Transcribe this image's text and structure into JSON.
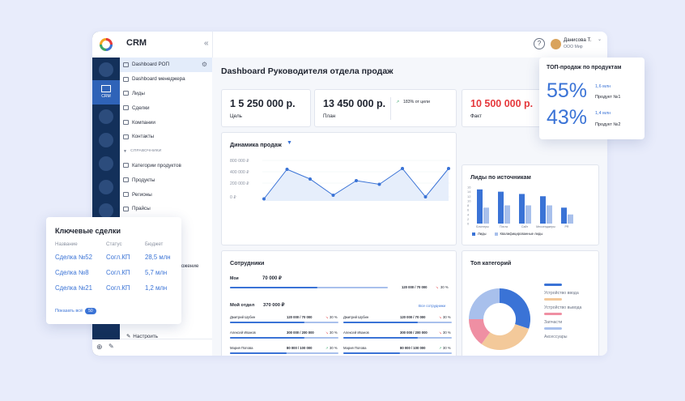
{
  "app": {
    "name": "CRM",
    "collapse_icon": "double-chevron-left-icon",
    "rail_selected_label": "CRM"
  },
  "sidebar": {
    "items": [
      {
        "label": "Dashboard РОП",
        "icon": "wifi-icon",
        "active": true
      },
      {
        "label": "Dashboard менеджера",
        "icon": "wifi-icon"
      },
      {
        "label": "Лиды",
        "icon": "funnel-icon"
      },
      {
        "label": "Сделки",
        "icon": "deals-icon"
      },
      {
        "label": "Компании",
        "icon": "building-icon"
      },
      {
        "label": "Контакты",
        "icon": "contacts-icon"
      }
    ],
    "section_label": "СПРАВОЧНИКИ",
    "ref_items": [
      {
        "label": "Категории продуктов",
        "icon": "grid-icon"
      },
      {
        "label": "Продукты",
        "icon": "grid-icon"
      },
      {
        "label": "Регионы",
        "icon": "document-icon"
      },
      {
        "label": "Прайсы",
        "icon": "document-icon"
      }
    ],
    "partial_item": "ложение",
    "settings_label": "Настроить"
  },
  "header": {
    "user_name": "Данисова Т.",
    "user_org": "ООО Мир"
  },
  "page": {
    "title": "Dashboard Руководителя отдела продаж"
  },
  "kpis": [
    {
      "value": "1 5 250 000 р.",
      "label": "Цель"
    },
    {
      "value": "13 450 000 р.",
      "label": "План",
      "delta": "183% от цели"
    },
    {
      "value": "10 500 000 р.",
      "label": "Факт"
    }
  ],
  "sales_dynamics": {
    "title": "Динамика продаж"
  },
  "leads_sources": {
    "title": "Лиды по источникам",
    "legend": [
      "Лиды",
      "Квалифицированные лиды"
    ]
  },
  "employees": {
    "title": "Сотрудники",
    "me": {
      "label": "Мои",
      "value": "70 000 ₽",
      "progress_text": "120 000 / 70 000",
      "pct": "30 %"
    },
    "dept": {
      "label": "Мой отдел",
      "value": "370 000 ₽",
      "link": "Все сотрудники"
    },
    "rows": [
      {
        "name": "Дмитрий Шубин",
        "value": "120 000 / 70 000",
        "pct": "30 %",
        "trend": "down"
      },
      {
        "name": "Дмитрий Шубин",
        "value": "120 000 / 70 000",
        "pct": "30 %",
        "trend": "down"
      },
      {
        "name": "Алексей Иванов",
        "value": "300 000 / 200 000",
        "pct": "30 %",
        "trend": "down"
      },
      {
        "name": "Алексей Иванов",
        "value": "300 000 / 200 000",
        "pct": "30 %",
        "trend": "down"
      },
      {
        "name": "Мария Попова",
        "value": "80 000 / 100 000",
        "pct": "30 %",
        "trend": "up"
      },
      {
        "name": "Мария Попова",
        "value": "80 000 / 100 000",
        "pct": "30 %",
        "trend": "up"
      }
    ]
  },
  "top_categories": {
    "title": "Топ категорий",
    "legend": [
      "Устройство ввода",
      "Устройство вывода",
      "Запчасти",
      "Аксессуары"
    ]
  },
  "top_products": {
    "title": "ТОП-продаж по продуктам",
    "items": [
      {
        "pct": "55%",
        "amount": "1,6 млн",
        "name": "Продукт №1"
      },
      {
        "pct": "43%",
        "amount": "1,4 млн",
        "name": "Продукт №2"
      }
    ]
  },
  "key_deals": {
    "title": "Ключевые сделки",
    "columns": [
      "Название",
      "Статус",
      "Бюджет"
    ],
    "rows": [
      [
        "Сделка №52",
        "Согл.КП",
        "28,5 млн"
      ],
      [
        "Сделка №8",
        "Согл.КП",
        "5,7 млн"
      ],
      [
        "Сделка №21",
        "Согл.КП",
        "1,2 млн"
      ]
    ],
    "show_all": "Показать всё",
    "count": "50"
  },
  "colors": {
    "accent": "#3a73d6",
    "fact": "#e5393d",
    "rail": "#13305a",
    "green": "#3aa66a",
    "orange": "#f3b36b",
    "pink": "#ef7b8f",
    "light_blue": "#a8c0ec"
  },
  "chart_data": [
    {
      "type": "line",
      "title": "Динамика продаж",
      "yticks": [
        "800 000 ₽",
        "400 000 ₽",
        "200 000 ₽",
        "0 ₽"
      ],
      "values": [
        0.05,
        0.78,
        0.54,
        0.14,
        0.5,
        0.41,
        0.8,
        0.1,
        0.8
      ],
      "note": "values are relative (0-1) estimates; exact scale not readable"
    },
    {
      "type": "bar",
      "title": "Лиды по источникам",
      "categories": [
        "Блоггеры",
        "Почта",
        "Сайт",
        "Мессенджеры",
        "PR"
      ],
      "yticks": [
        "16",
        "14",
        "12",
        "10",
        "8",
        "6",
        "4",
        "2",
        "0"
      ],
      "series": [
        {
          "name": "Лиды",
          "values": [
            15,
            14,
            13,
            12,
            7
          ]
        },
        {
          "name": "Квалифицированные лиды",
          "values": [
            7,
            8,
            8,
            8,
            4
          ]
        }
      ],
      "ylim": [
        0,
        16
      ]
    },
    {
      "type": "pie",
      "title": "Топ категорий",
      "categories": [
        "Устройство ввода",
        "Устройство вывода",
        "Запчасти",
        "Аксессуары"
      ],
      "values": [
        30,
        30,
        15,
        25
      ]
    }
  ]
}
